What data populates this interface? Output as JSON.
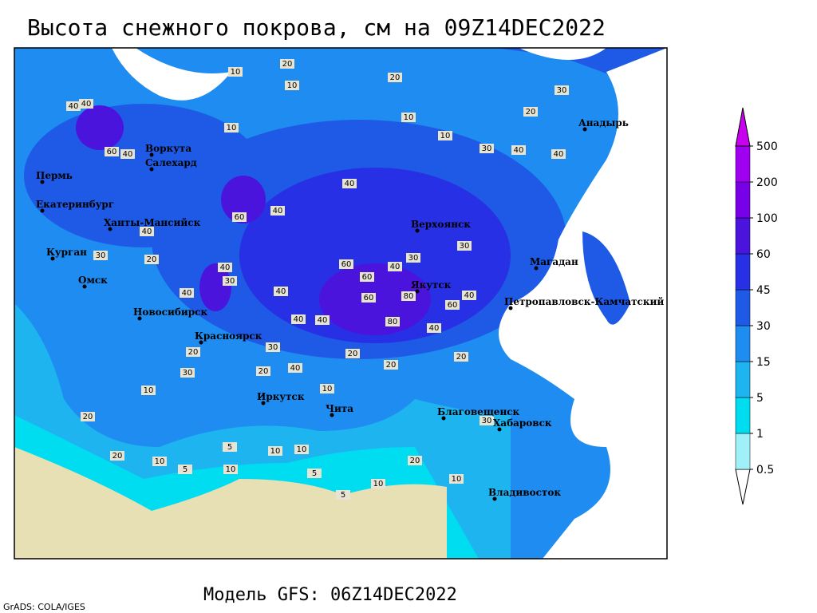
{
  "title": "Высота снежного покрова, см на 09Z14DEC2022",
  "footer": "Модель GFS: 06Z14DEC2022",
  "credit": "GrADS: COLA/IGES",
  "colorbar": {
    "levels": [
      0.5,
      1,
      5,
      15,
      30,
      45,
      60,
      100,
      200,
      500
    ],
    "colors": [
      "#ffffff",
      "#a0f0fa",
      "#00dcf0",
      "#1eb4f0",
      "#1e8cf0",
      "#1e5ae6",
      "#2830e6",
      "#4b14dc",
      "#7800e6",
      "#a000f0",
      "#c800f0"
    ]
  },
  "cities": [
    "Воркута",
    "Салехард",
    "Пермь",
    "Екатеринбург",
    "Ханты-Мансийск",
    "Курган",
    "Омск",
    "Новосибирск",
    "Красноярск",
    "Иркутск",
    "Чита",
    "Благовещенск",
    "Хабаровск",
    "Владивосток",
    "Якутск",
    "Верхоянск",
    "Магадан",
    "Петропавловск-Камчатский",
    "Анадырь"
  ],
  "contour_labels": [
    20,
    10,
    20,
    10,
    30,
    40,
    40,
    10,
    10,
    20,
    60,
    10,
    30,
    40,
    40,
    60,
    40,
    40,
    40,
    30,
    20,
    40,
    40,
    30,
    40,
    40,
    60,
    60,
    40,
    30,
    30,
    80,
    60,
    80,
    60,
    40,
    40,
    40,
    40,
    20,
    20,
    20,
    30,
    20,
    40,
    30,
    20,
    10,
    20,
    10,
    5,
    5,
    10,
    10,
    5,
    10,
    5,
    10,
    20,
    30,
    10,
    20,
    10
  ]
}
